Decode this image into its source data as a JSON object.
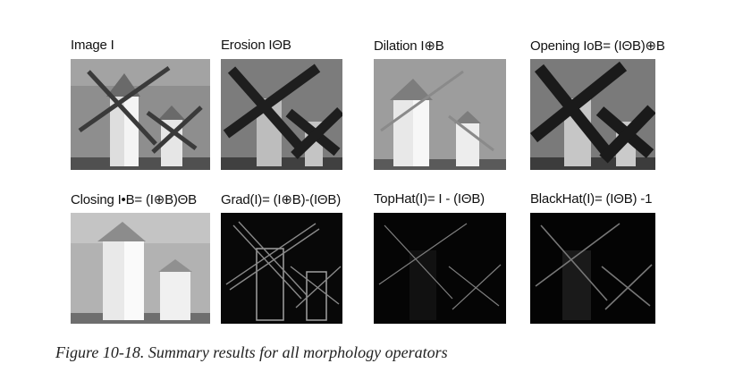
{
  "figure": {
    "panels": [
      {
        "label": "Image I"
      },
      {
        "label": "Erosion IΘB"
      },
      {
        "label": "Dilation I⊕B"
      },
      {
        "label": "Opening IoB= (IΘB)⊕B"
      },
      {
        "label": "Closing I•B= (I⊕B)ΘB"
      },
      {
        "label": "Grad(I)= (I⊕B)-(IΘB)"
      },
      {
        "label": "TopHat(I)= I - (IΘB)"
      },
      {
        "label": "BlackHat(I)= (IΘB) -1"
      }
    ],
    "caption": "Figure 10-18. Summary results for all morphology operators"
  }
}
